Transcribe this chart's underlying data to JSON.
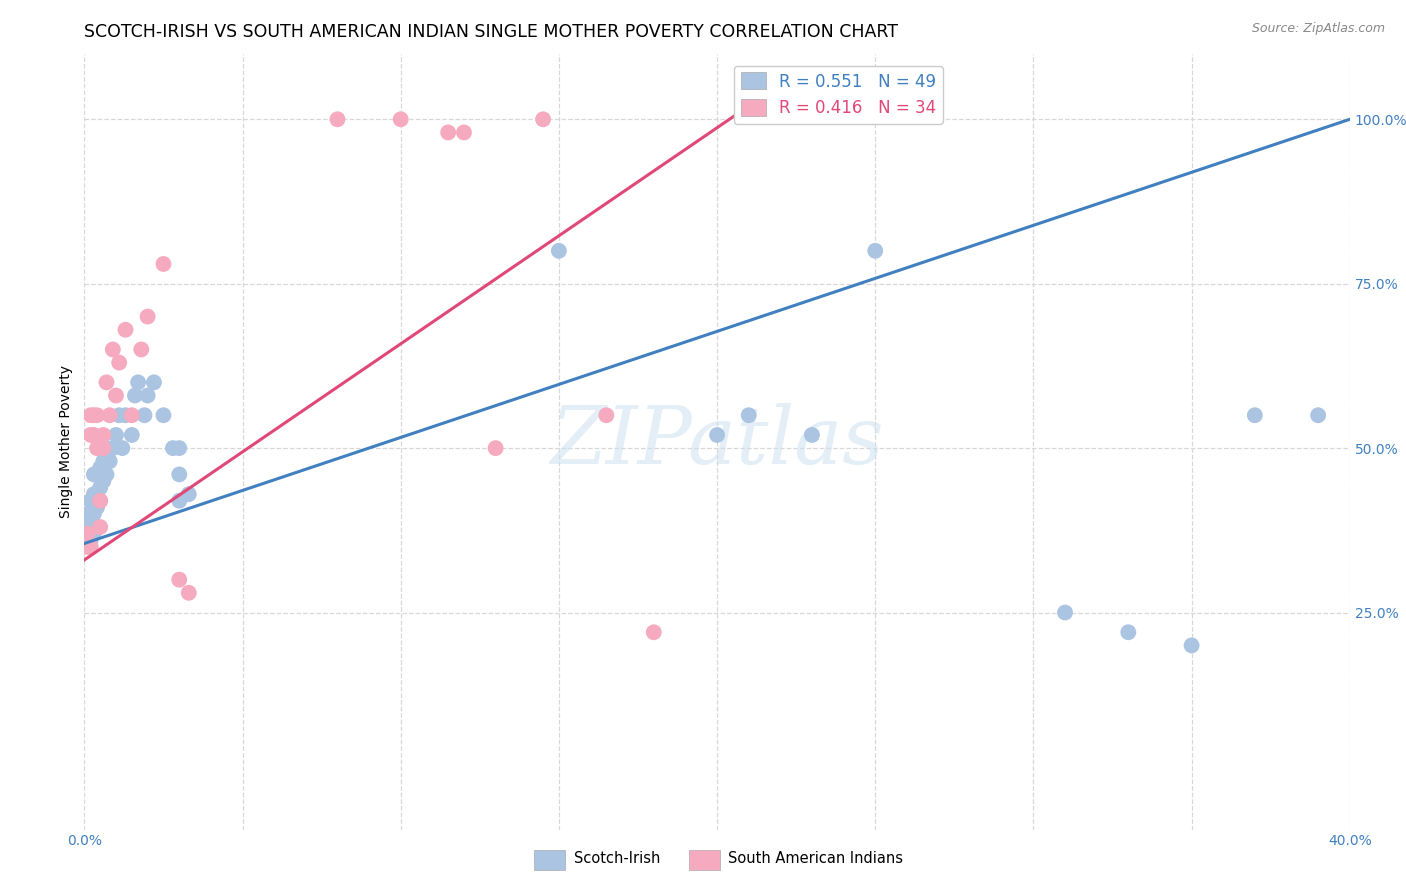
{
  "title": "SCOTCH-IRISH VS SOUTH AMERICAN INDIAN SINGLE MOTHER POVERTY CORRELATION CHART",
  "source": "Source: ZipAtlas.com",
  "ylabel": "Single Mother Poverty",
  "xmin": 0.0,
  "xmax": 0.4,
  "ymin": -0.08,
  "ymax": 1.1,
  "yticks_right": [
    0.25,
    0.5,
    0.75,
    1.0
  ],
  "ytick_labels_right": [
    "25.0%",
    "50.0%",
    "75.0%",
    "100.0%"
  ],
  "blue_R": 0.551,
  "blue_N": 49,
  "pink_R": 0.416,
  "pink_N": 34,
  "blue_color": "#aac4e2",
  "pink_color": "#f5aabf",
  "blue_line_color": "#4080c0",
  "pink_line_color": "#e04878",
  "watermark_text": "ZIPatlas",
  "blue_scatter_x": [
    0.001,
    0.001,
    0.001,
    0.002,
    0.002,
    0.002,
    0.002,
    0.003,
    0.003,
    0.003,
    0.003,
    0.004,
    0.004,
    0.004,
    0.005,
    0.005,
    0.005,
    0.006,
    0.006,
    0.007,
    0.007,
    0.008,
    0.009,
    0.01,
    0.011,
    0.012,
    0.013,
    0.015,
    0.016,
    0.017,
    0.019,
    0.02,
    0.022,
    0.025,
    0.028,
    0.03,
    0.03,
    0.03,
    0.033,
    0.15,
    0.2,
    0.21,
    0.23,
    0.25,
    0.31,
    0.33,
    0.35,
    0.37,
    0.39
  ],
  "blue_scatter_y": [
    0.36,
    0.38,
    0.4,
    0.36,
    0.38,
    0.4,
    0.42,
    0.37,
    0.4,
    0.43,
    0.46,
    0.41,
    0.43,
    0.46,
    0.42,
    0.44,
    0.47,
    0.45,
    0.48,
    0.46,
    0.5,
    0.48,
    0.5,
    0.52,
    0.55,
    0.5,
    0.55,
    0.52,
    0.58,
    0.6,
    0.55,
    0.58,
    0.6,
    0.55,
    0.5,
    0.42,
    0.46,
    0.5,
    0.43,
    0.8,
    0.52,
    0.55,
    0.52,
    0.8,
    0.25,
    0.22,
    0.2,
    0.55,
    0.55
  ],
  "pink_scatter_x": [
    0.001,
    0.001,
    0.001,
    0.002,
    0.002,
    0.002,
    0.003,
    0.003,
    0.004,
    0.004,
    0.005,
    0.005,
    0.006,
    0.006,
    0.007,
    0.008,
    0.009,
    0.01,
    0.011,
    0.013,
    0.015,
    0.018,
    0.02,
    0.025,
    0.03,
    0.033,
    0.08,
    0.1,
    0.115,
    0.12,
    0.13,
    0.145,
    0.165,
    0.18
  ],
  "pink_scatter_y": [
    0.35,
    0.37,
    0.35,
    0.52,
    0.55,
    0.35,
    0.52,
    0.55,
    0.5,
    0.55,
    0.38,
    0.42,
    0.5,
    0.52,
    0.6,
    0.55,
    0.65,
    0.58,
    0.63,
    0.68,
    0.55,
    0.65,
    0.7,
    0.78,
    0.3,
    0.28,
    1.0,
    1.0,
    0.98,
    0.98,
    0.5,
    1.0,
    0.55,
    0.22
  ],
  "blue_line_x0": 0.0,
  "blue_line_y0": 0.355,
  "blue_line_x1": 0.4,
  "blue_line_y1": 1.0,
  "pink_line_x0": 0.0,
  "pink_line_y0": 0.33,
  "pink_line_x1": 0.21,
  "pink_line_y1": 1.02,
  "grid_color": "#d8d8d8",
  "title_fontsize": 12.5,
  "axis_label_fontsize": 10,
  "tick_fontsize": 10,
  "scatter_size": 130
}
